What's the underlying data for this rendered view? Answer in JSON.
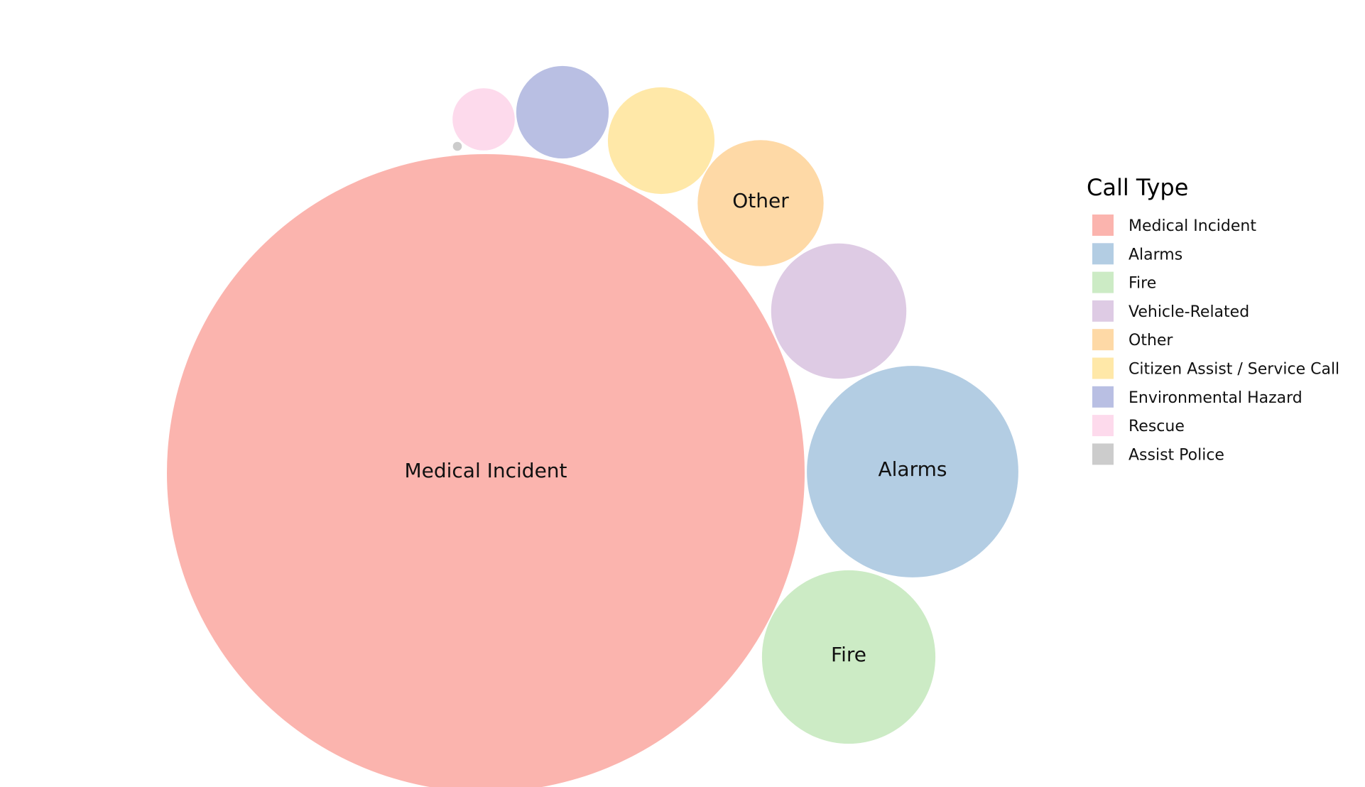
{
  "chart_data": {
    "type": "bubble",
    "legend_title": "Call Type",
    "legend_position": "right",
    "categories": [
      "Medical Incident",
      "Alarms",
      "Fire",
      "Vehicle-Related",
      "Other",
      "Citizen Assist / Service Call",
      "Environmental Hazard",
      "Rescue",
      "Assist Police"
    ],
    "values": [
      10000,
      1100,
      740,
      450,
      390,
      280,
      210,
      95,
      2
    ],
    "labels_shown": [
      "Medical Incident",
      "Alarms",
      "Fire",
      "Other"
    ],
    "colors": {
      "Medical Incident": "#fbb4ae",
      "Alarms": "#b3cde3",
      "Fire": "#ccebc5",
      "Vehicle-Related": "#decbe4",
      "Other": "#fed9a6",
      "Citizen Assist / Service Call": "#ffe8a8",
      "Environmental Hazard": "#b9bfe3",
      "Rescue": "#fddaec",
      "Assist Police": "#cccccc"
    }
  }
}
